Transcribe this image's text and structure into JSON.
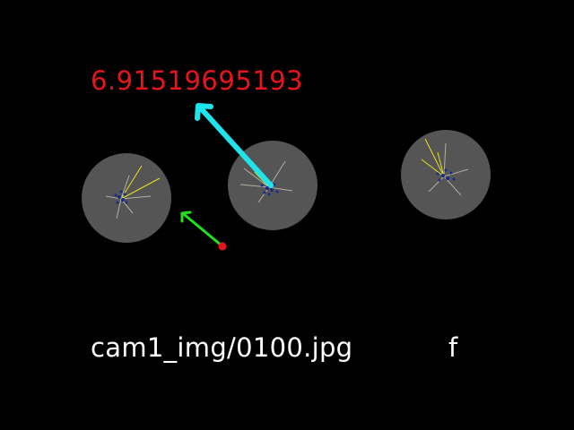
{
  "frame": {
    "score": "6.91519695193",
    "filename": "cam1_img/0100.jpg",
    "flag": "f"
  },
  "colors": {
    "background": "#000000",
    "score_text": "#e8141b",
    "label_text": "#ffffff",
    "ball_fill": "#555555",
    "primary_arrow": "#20e4ec",
    "secondary_arrow": "#22e01a",
    "origin_marker": "#e8141b",
    "feature_vector": "#e8e21a",
    "feature_vector_alt": "#b0b0a0",
    "feature_point": "#1a2a8a"
  },
  "icons": {
    "ball": "circle-blob",
    "arrow": "arrow-vector",
    "marker": "dot-marker"
  }
}
